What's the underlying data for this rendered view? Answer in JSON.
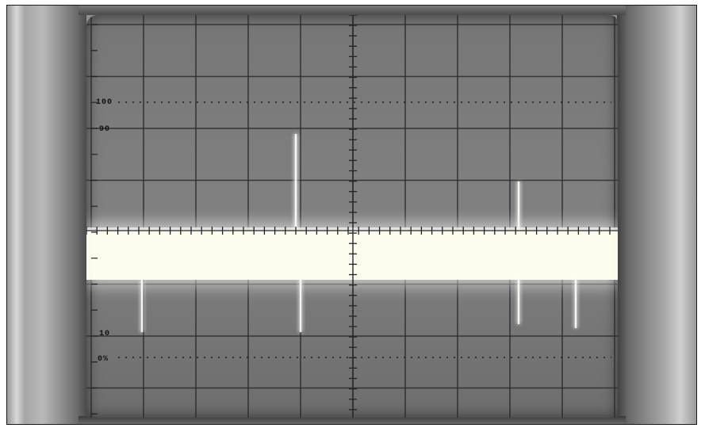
{
  "scope": {
    "scale_labels": {
      "top_100": "100",
      "ninety": "90",
      "ten": "10",
      "zero_pct": "0%"
    },
    "colors": {
      "screen": "#7c7c7c",
      "grid": "#2b2b2b",
      "trace": "#fffef0",
      "bezel": "#9a9a9a"
    },
    "icon": "oscilloscope-crt-display"
  }
}
